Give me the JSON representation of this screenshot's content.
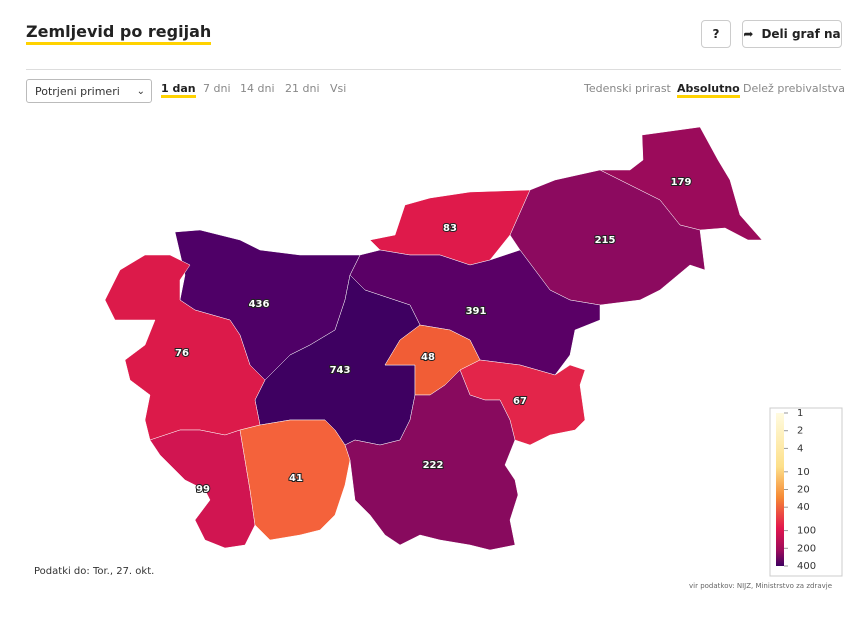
{
  "header": {
    "title": "Zemljevid po regijah",
    "help": "?",
    "share": "Deli graf na"
  },
  "controls": {
    "select": "Potrjeni primeri",
    "periods": [
      "1 dan",
      "7 dni",
      "14 dni",
      "21 dni",
      "Vsi"
    ],
    "active_period": 0,
    "modes": [
      "Tedenski prirast",
      "Absolutno",
      "Delež prebivalstva"
    ],
    "active_mode": 1
  },
  "map": {
    "regions": [
      {
        "value": 179,
        "color": "#9b0b5b"
      },
      {
        "value": 215,
        "color": "#8c0a5f"
      },
      {
        "value": 83,
        "color": "#df1a4b"
      },
      {
        "value": 391,
        "color": "#5a0066"
      },
      {
        "value": 436,
        "color": "#4f0067"
      },
      {
        "value": 743,
        "color": "#3e0061"
      },
      {
        "value": 48,
        "color": "#f15d36"
      },
      {
        "value": 67,
        "color": "#e3254a"
      },
      {
        "value": 222,
        "color": "#880a5e"
      },
      {
        "value": 76,
        "color": "#dc1a4a"
      },
      {
        "value": 99,
        "color": "#d11551"
      },
      {
        "value": 41,
        "color": "#f4623b"
      }
    ]
  },
  "legend": {
    "ticks": [
      1,
      2,
      4,
      10,
      20,
      40,
      100,
      200,
      400
    ]
  },
  "footer": {
    "date": "Podatki do: Tor., 27. okt.",
    "source": "vir podatkov: NIJZ, Ministrstvo za zdravje"
  }
}
